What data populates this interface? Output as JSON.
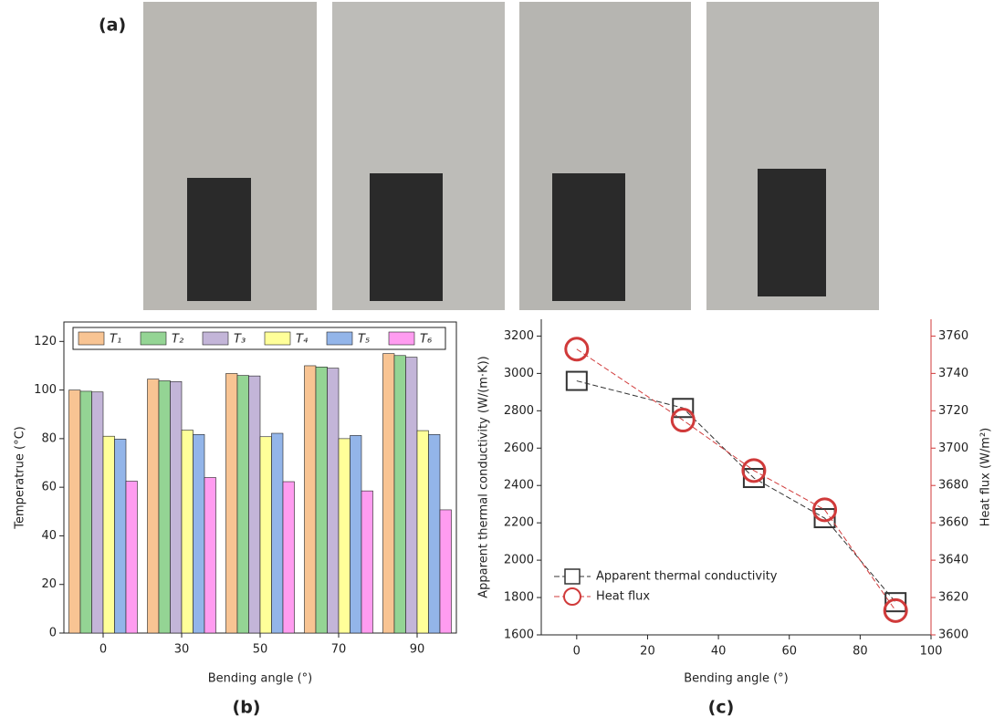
{
  "panel_labels": [
    "(a)",
    "(b)",
    "(c)"
  ],
  "chart_data": [
    {
      "type": "bar",
      "xlabel": "Bending angle (°)",
      "ylabel": "Temperatrue (°C)",
      "categories": [
        "0",
        "30",
        "50",
        "70",
        "90"
      ],
      "ylim": [
        0,
        128
      ],
      "yticks": [
        0,
        20,
        40,
        60,
        80,
        100,
        120
      ],
      "legend": "top",
      "series": [
        {
          "name": "T₁",
          "color": "#f8c493",
          "values": [
            100,
            104.5,
            106.8,
            110,
            115
          ]
        },
        {
          "name": "T₂",
          "color": "#94d494",
          "values": [
            99.5,
            103.8,
            106,
            109.5,
            114.2
          ]
        },
        {
          "name": "T₃",
          "color": "#c3b5d8",
          "values": [
            99.2,
            103.5,
            105.8,
            109,
            113.5
          ]
        },
        {
          "name": "T₄",
          "color": "#ffff99",
          "values": [
            81,
            83.5,
            80.8,
            80,
            83.3
          ]
        },
        {
          "name": "T₅",
          "color": "#93b5e9",
          "values": [
            79.8,
            81.7,
            82.2,
            81.3,
            81.7
          ]
        },
        {
          "name": "T₆",
          "color": "#ff9cf0",
          "values": [
            62.5,
            64,
            62.3,
            58.5,
            50.7
          ]
        }
      ]
    },
    {
      "type": "line",
      "xlabel": "Bending angle (°)",
      "ylabel": "Apparent thermal conductivity (W/(m·K))",
      "y2label": "Heat flux (W/m²)",
      "x": [
        0,
        30,
        50,
        70,
        90
      ],
      "xlim": [
        -10,
        100
      ],
      "xticks": [
        0,
        20,
        40,
        60,
        80,
        100
      ],
      "ylim": [
        1600,
        3290
      ],
      "yticks": [
        1600,
        1800,
        2000,
        2200,
        2400,
        2600,
        2800,
        3000,
        3200
      ],
      "y2lim": [
        3600,
        3769
      ],
      "y2ticks": [
        3600,
        3620,
        3640,
        3660,
        3680,
        3700,
        3720,
        3740,
        3760
      ],
      "legend": "lower left",
      "series": [
        {
          "name": "Apparent thermal conductivity",
          "color": "#333333",
          "marker": "square",
          "values": [
            2960,
            2815,
            2440,
            2225,
            1775
          ]
        },
        {
          "name": "Heat flux",
          "color": "#d03a3a",
          "marker": "circle",
          "axis": "y2",
          "values": [
            3753,
            3715,
            3688,
            3667,
            3613
          ]
        }
      ]
    }
  ]
}
